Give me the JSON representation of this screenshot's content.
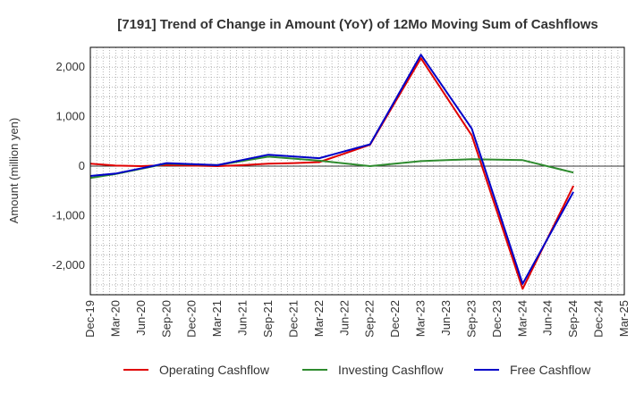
{
  "chart_data": {
    "type": "line",
    "title": "[7191]  Trend of Change in Amount (YoY) of 12Mo Moving Sum of Cashflows",
    "xlabel": "",
    "ylabel": "Amount (million yen)",
    "ylim": [
      -2600,
      2400
    ],
    "yticks": [
      -2000,
      -1000,
      0,
      1000,
      2000
    ],
    "ytick_labels": [
      "-2,000",
      "-1,000",
      "0",
      "1,000",
      "2,000"
    ],
    "categories": [
      "Dec-19",
      "Mar-20",
      "Jun-20",
      "Sep-20",
      "Dec-20",
      "Mar-21",
      "Jun-21",
      "Sep-21",
      "Dec-21",
      "Mar-22",
      "Jun-22",
      "Sep-22",
      "Dec-22",
      "Mar-23",
      "Jun-23",
      "Sep-23",
      "Dec-23",
      "Mar-24",
      "Jun-24",
      "Sep-24",
      "Dec-24",
      "Mar-25"
    ],
    "grid": true,
    "legend_position": "bottom",
    "series": [
      {
        "name": "Operating Cashflow",
        "color": "#e00000",
        "values": [
          50,
          10,
          0,
          20,
          10,
          0,
          20,
          50,
          60,
          80,
          null,
          430,
          null,
          2180,
          null,
          620,
          null,
          -2480,
          null,
          -400,
          null,
          null
        ]
      },
      {
        "name": "Investing Cashflow",
        "color": "#2e8b2e",
        "values": [
          -240,
          -160,
          null,
          50,
          null,
          20,
          null,
          190,
          null,
          110,
          null,
          0,
          null,
          100,
          null,
          140,
          null,
          120,
          null,
          -130,
          null,
          null
        ]
      },
      {
        "name": "Free Cashflow",
        "color": "#0000c8",
        "values": [
          -200,
          -150,
          null,
          60,
          null,
          20,
          null,
          230,
          null,
          160,
          null,
          440,
          null,
          2250,
          null,
          760,
          null,
          -2380,
          null,
          -520,
          null,
          null
        ]
      }
    ]
  }
}
